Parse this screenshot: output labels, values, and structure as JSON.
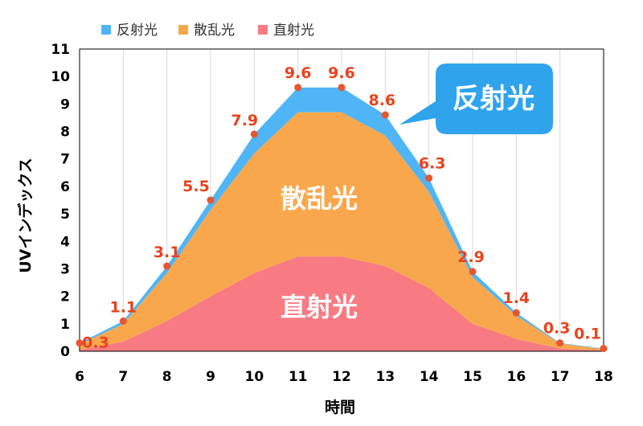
{
  "chart_data": {
    "type": "area",
    "stacked": true,
    "x": [
      6,
      7,
      8,
      9,
      10,
      11,
      12,
      13,
      14,
      15,
      16,
      17,
      18
    ],
    "xlabel": "時間",
    "ylabel": "UVインデックス",
    "ylim": [
      0,
      11
    ],
    "yticks": [
      0,
      1,
      2,
      3,
      4,
      5,
      6,
      7,
      8,
      9,
      10,
      11
    ],
    "grid": "vertical",
    "legend_position": "top",
    "series": [
      {
        "name": "直射光",
        "color": "#f87b83",
        "values": [
          0.05,
          0.35,
          1.1,
          2.0,
          2.85,
          3.45,
          3.45,
          3.1,
          2.3,
          1.0,
          0.45,
          0.1,
          0.03
        ]
      },
      {
        "name": "散乱光",
        "color": "#f9a74c",
        "values": [
          0.2,
          0.65,
          1.75,
          3.15,
          4.35,
          5.25,
          5.25,
          4.75,
          3.5,
          1.7,
          0.85,
          0.18,
          0.05
        ]
      },
      {
        "name": "反射光",
        "color": "#4fb5f6",
        "values": [
          0.05,
          0.1,
          0.25,
          0.35,
          0.7,
          0.9,
          0.9,
          0.75,
          0.5,
          0.2,
          0.1,
          0.02,
          0.02
        ]
      }
    ],
    "total_points": [
      0.3,
      1.1,
      3.1,
      5.5,
      7.9,
      9.6,
      9.6,
      8.6,
      6.3,
      2.9,
      1.4,
      0.3,
      0.1
    ],
    "data_labels": [
      "0.3",
      "1.1",
      "3.1",
      "5.5",
      "7.9",
      "9.6",
      "9.6",
      "8.6",
      "6.3",
      "2.9",
      "1.4",
      "0.3",
      "0.1"
    ],
    "point_color": "#e8552e",
    "label_color": "#e8431c",
    "area_labels": {
      "scattered": "散乱光",
      "direct": "直射光"
    },
    "callout": {
      "text": "反射光",
      "color": "#2fa3ec"
    }
  }
}
